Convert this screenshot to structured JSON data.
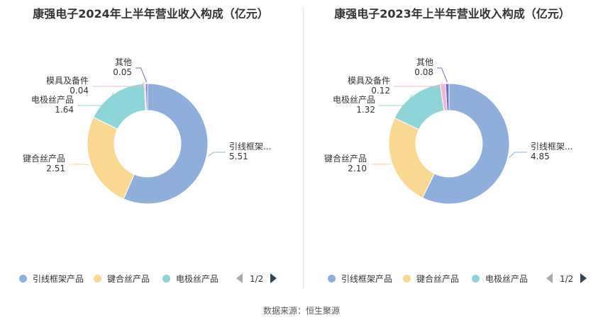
{
  "source": "数据来源：恒生聚源",
  "colors": {
    "引线框架产品": "#8eafdc",
    "键合丝产品": "#fbd892",
    "电极丝产品": "#8dd5d9",
    "模具及备件": "#f1b4d4",
    "其他": "#6d6fd1"
  },
  "chart_data": [
    {
      "type": "pie",
      "style": "donut",
      "title": "康强电子2024年上半年营业收入构成（亿元）",
      "categories": [
        "引线框架产品",
        "键合丝产品",
        "电极丝产品",
        "模具及备件",
        "其他"
      ],
      "values": [
        5.51,
        2.51,
        1.64,
        0.04,
        0.05
      ],
      "slice_labels": [
        {
          "name": "引线框架...",
          "value": "5.51"
        },
        {
          "name": "键合丝产品",
          "value": "2.51"
        },
        {
          "name": "电极丝产品",
          "value": "1.64"
        },
        {
          "name": "模具及备件",
          "value": "0.04"
        },
        {
          "name": "其他",
          "value": "0.05"
        }
      ],
      "legend": {
        "items": [
          "引线框架产品",
          "键合丝产品",
          "电极丝产品"
        ],
        "page": "1/2",
        "placement": "bottom"
      }
    },
    {
      "type": "pie",
      "style": "donut",
      "title": "康强电子2023年上半年营业收入构成（亿元）",
      "categories": [
        "引线框架产品",
        "键合丝产品",
        "电极丝产品",
        "模具及备件",
        "其他"
      ],
      "values": [
        4.85,
        2.1,
        1.32,
        0.12,
        0.08
      ],
      "slice_labels": [
        {
          "name": "引线框架...",
          "value": "4.85"
        },
        {
          "name": "键合丝产品",
          "value": "2.10"
        },
        {
          "name": "电极丝产品",
          "value": "1.32"
        },
        {
          "name": "模具及备件",
          "value": "0.12"
        },
        {
          "name": "其他",
          "value": "0.08"
        }
      ],
      "legend": {
        "items": [
          "引线框架产品",
          "键合丝产品",
          "电极丝产品"
        ],
        "page": "1/2",
        "placement": "bottom"
      }
    }
  ]
}
